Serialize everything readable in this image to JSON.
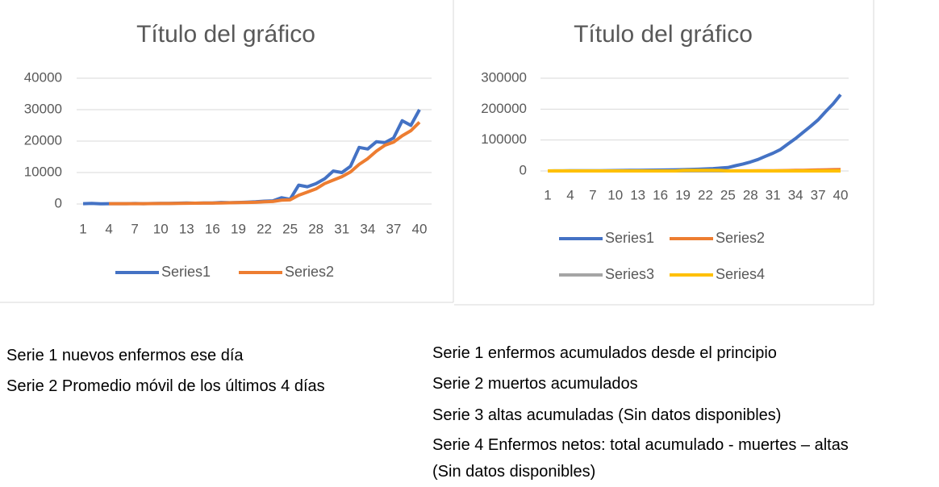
{
  "chart_data": [
    {
      "type": "line",
      "title": "Título del gráfico",
      "categories": [
        1,
        null,
        null,
        4,
        null,
        null,
        7,
        null,
        null,
        10,
        null,
        null,
        13,
        null,
        null,
        16,
        null,
        null,
        19,
        null,
        null,
        22,
        null,
        null,
        25,
        null,
        null,
        28,
        null,
        null,
        31,
        null,
        null,
        34,
        null,
        null,
        37,
        null,
        null,
        40
      ],
      "ylim": [
        0,
        40000
      ],
      "yticks": [
        0,
        10000,
        20000,
        30000,
        40000
      ],
      "grid": true,
      "series": [
        {
          "name": "Series1",
          "color": "#4472c4",
          "values": [
            100,
            200,
            50,
            100,
            100,
            100,
            150,
            100,
            150,
            200,
            200,
            250,
            300,
            250,
            300,
            300,
            500,
            400,
            500,
            600,
            700,
            900,
            1000,
            2000,
            1500,
            6000,
            5500,
            6500,
            8000,
            10500,
            10000,
            12000,
            18000,
            17500,
            19800,
            19500,
            21000,
            26500,
            25000,
            30000
          ]
        },
        {
          "name": "Series2",
          "color": "#ed7d31",
          "values": [
            null,
            null,
            null,
            110,
            110,
            100,
            110,
            110,
            120,
            150,
            160,
            200,
            240,
            250,
            280,
            280,
            340,
            380,
            430,
            500,
            550,
            700,
            800,
            1200,
            1300,
            2800,
            3800,
            4800,
            6500,
            7600,
            8700,
            10200,
            12600,
            14400,
            16800,
            18700,
            19700,
            21700,
            23300,
            26000
          ]
        }
      ]
    },
    {
      "type": "line",
      "title": "Título del gráfico",
      "categories": [
        1,
        null,
        null,
        4,
        null,
        null,
        7,
        null,
        null,
        10,
        null,
        null,
        13,
        null,
        null,
        16,
        null,
        null,
        19,
        null,
        null,
        22,
        null,
        null,
        25,
        null,
        null,
        28,
        null,
        null,
        31,
        null,
        null,
        34,
        null,
        null,
        37,
        null,
        null,
        40
      ],
      "ylim": [
        0,
        300000
      ],
      "yticks": [
        0,
        100000,
        200000,
        300000
      ],
      "grid": true,
      "series": [
        {
          "name": "Series1",
          "color": "#4472c4",
          "values": [
            100,
            300,
            350,
            450,
            550,
            650,
            800,
            900,
            1050,
            1250,
            1450,
            1700,
            2000,
            2250,
            2550,
            2850,
            3350,
            3750,
            4250,
            4850,
            5550,
            6450,
            7450,
            9450,
            10950,
            16950,
            22450,
            28950,
            36950,
            47450,
            57450,
            69450,
            87450,
            104950,
            124750,
            144250,
            165250,
            191750,
            216750,
            246750
          ]
        },
        {
          "name": "Series2",
          "color": "#ed7d31",
          "values": [
            0,
            0,
            0,
            0,
            0,
            0,
            0,
            0,
            0,
            0,
            0,
            0,
            0,
            0,
            0,
            0,
            0,
            0,
            0,
            0,
            0,
            0,
            0,
            0,
            100,
            150,
            200,
            300,
            500,
            600,
            800,
            1000,
            1300,
            1700,
            2100,
            2600,
            3200,
            3600,
            4100,
            4800
          ]
        },
        {
          "name": "Series3",
          "color": "#a5a5a5",
          "values": [
            0,
            0,
            0,
            0,
            0,
            0,
            0,
            0,
            0,
            0,
            0,
            0,
            0,
            0,
            0,
            0,
            0,
            0,
            0,
            0,
            0,
            0,
            0,
            0,
            0,
            0,
            0,
            0,
            0,
            0,
            0,
            0,
            0,
            0,
            0,
            0,
            0,
            0,
            0,
            0
          ]
        },
        {
          "name": "Series4",
          "color": "#ffc000",
          "values": [
            0,
            0,
            0,
            0,
            0,
            0,
            0,
            0,
            0,
            0,
            0,
            0,
            0,
            0,
            0,
            0,
            0,
            0,
            1500,
            1800,
            2000,
            2200,
            2000,
            1500,
            0,
            0,
            0,
            0,
            0,
            0,
            0,
            0,
            0,
            0,
            0,
            0,
            0,
            0,
            0,
            0
          ]
        }
      ]
    }
  ],
  "notes": {
    "left": [
      "Serie 1 nuevos enfermos ese día",
      "Serie 2 Promedio móvil de los últimos 4 días"
    ],
    "right": [
      "Serie 1 enfermos acumulados desde el principio",
      "Serie 2 muertos acumulados",
      "Serie 3 altas acumuladas (Sin datos disponibles)",
      "Serie 4 Enfermos netos: total acumulado - muertes – altas",
      "(Sin datos disponibles)"
    ]
  }
}
